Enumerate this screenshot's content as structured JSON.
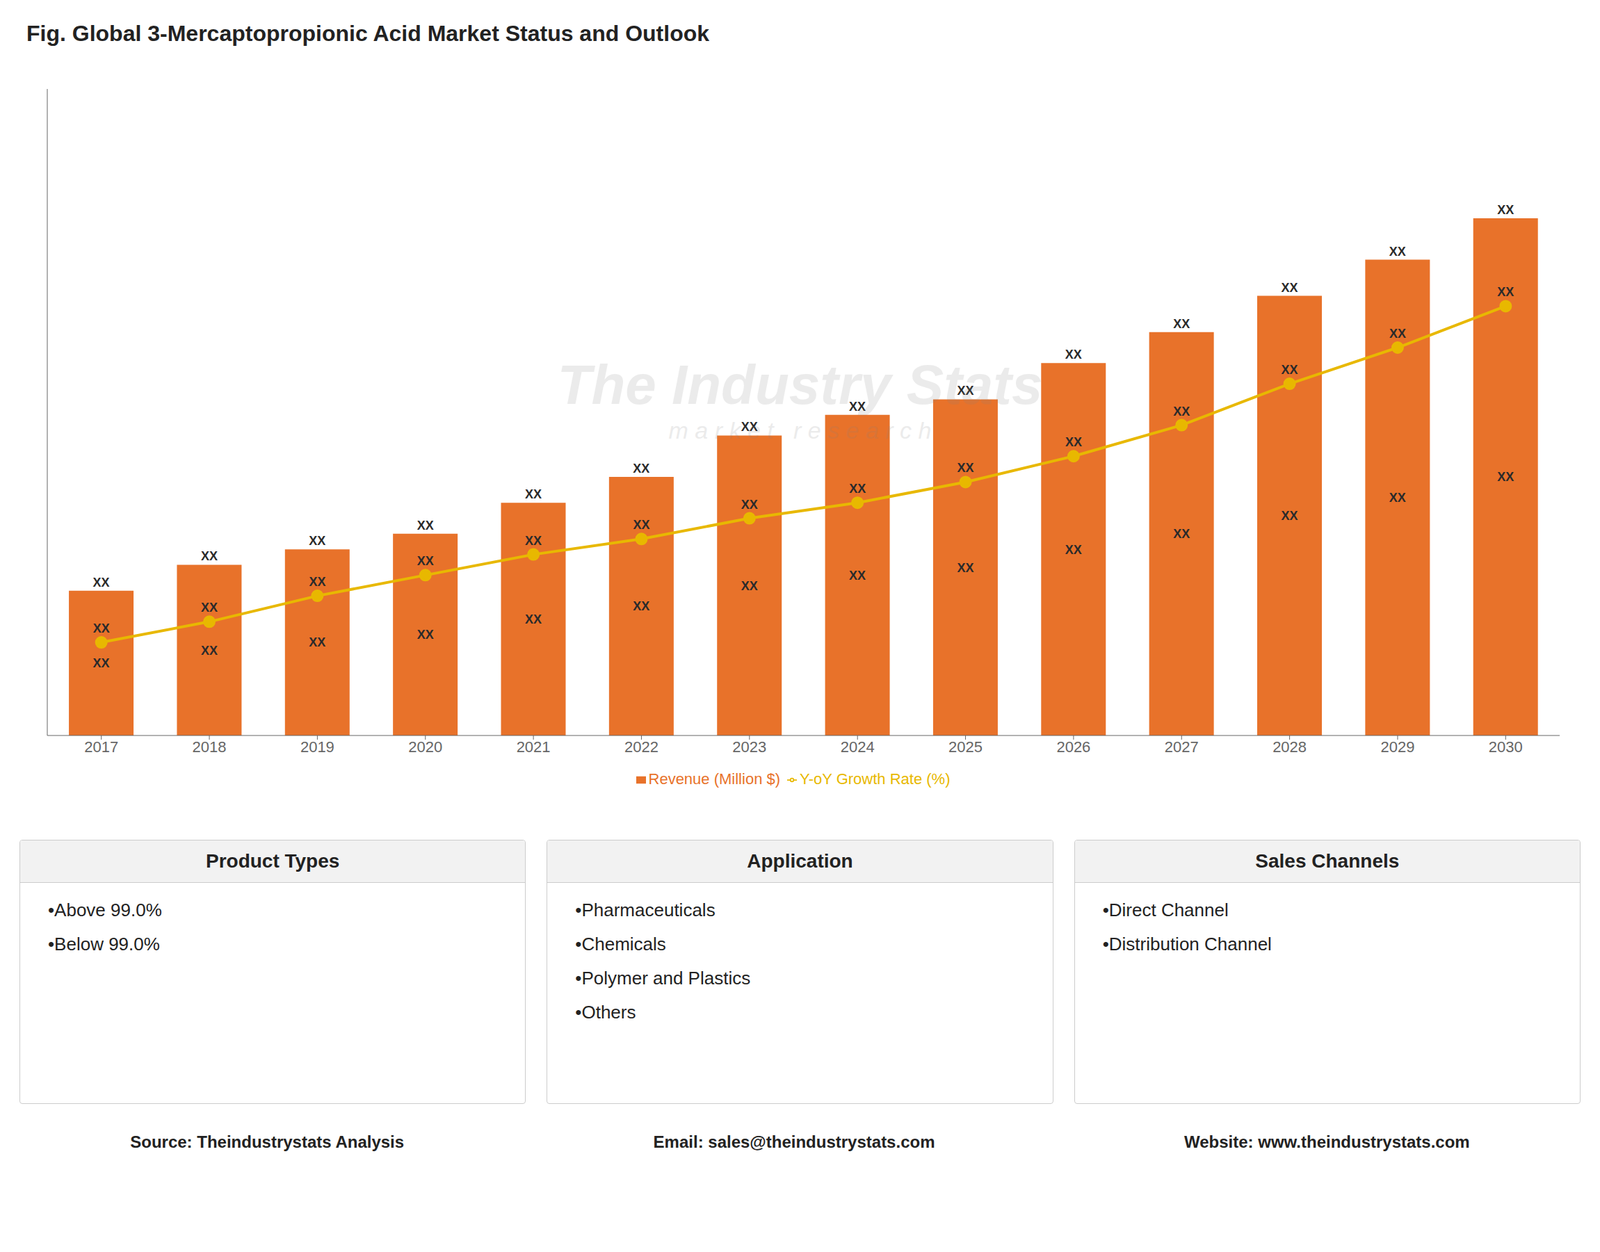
{
  "chart_data": {
    "type": "bar",
    "title": "Fig. Global 3-Mercaptopropionic Acid Market Status and Outlook",
    "categories": [
      "2017",
      "2018",
      "2019",
      "2020",
      "2021",
      "2022",
      "2023",
      "2024",
      "2025",
      "2026",
      "2027",
      "2028",
      "2029",
      "2030"
    ],
    "series": [
      {
        "name": "Revenue (Million $)",
        "type": "bar",
        "color": "#E8722A",
        "values": [
          2.8,
          3.3,
          3.6,
          3.9,
          4.5,
          5.0,
          5.8,
          6.2,
          6.5,
          7.2,
          7.8,
          8.5,
          9.2,
          10.0
        ],
        "value_labels": [
          "XX",
          "XX",
          "XX",
          "XX",
          "XX",
          "XX",
          "XX",
          "XX",
          "XX",
          "XX",
          "XX",
          "XX",
          "XX",
          "XX"
        ]
      },
      {
        "name": "Y-oY Growth Rate (%)",
        "type": "line",
        "color": "#E8B800",
        "marker": "circle",
        "values": [
          1.8,
          2.2,
          2.7,
          3.1,
          3.5,
          3.8,
          4.2,
          4.5,
          4.9,
          5.4,
          6.0,
          6.8,
          7.5,
          8.3
        ],
        "value_labels": [
          "XX",
          "XX",
          "XX",
          "XX",
          "XX",
          "XX",
          "XX",
          "XX",
          "XX",
          "XX",
          "XX",
          "XX",
          "XX",
          "XX"
        ]
      }
    ],
    "ylim": [
      0,
      12.5
    ],
    "grid": false,
    "legend": "bottom",
    "data_labels": true,
    "tick_labels": "x",
    "annotations": [
      "The Industry Stats",
      "m a r k e t   r e s e a r c h"
    ]
  },
  "cards": [
    {
      "title": "Product Types",
      "items": [
        "•Above 99.0%",
        "•Below 99.0%"
      ]
    },
    {
      "title": "Application",
      "items": [
        "•Pharmaceuticals",
        "•Chemicals",
        "•Polymer and Plastics",
        "•Others"
      ]
    },
    {
      "title": "Sales Channels",
      "items": [
        "•Direct Channel",
        "•Distribution Channel"
      ]
    }
  ],
  "footer": [
    "Source: Theindustrystats Analysis",
    "Email: sales@theindustrystats.com",
    "Website: www.theindustrystats.com"
  ]
}
